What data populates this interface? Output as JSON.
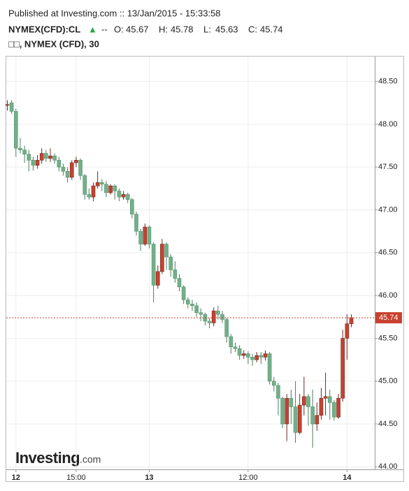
{
  "header": {
    "published": "Published at Investing.com :: 13/Jan/2015 - 15:33:58",
    "symbol": "NYMEX(CFD):CL",
    "arrow": "▲",
    "change": "--",
    "ohlc": [
      {
        "label": "O:",
        "value": 45.67
      },
      {
        "label": "H:",
        "value": 45.78
      },
      {
        "label": "L:",
        "value": 45.63
      },
      {
        "label": "C:",
        "value": 45.74
      }
    ],
    "legend": "□□, NYMEX (CFD), 30"
  },
  "logo": {
    "brand": "Investing",
    "domain": ".com"
  },
  "chart_data": {
    "type": "candlestick",
    "categories": [
      null,
      null,
      "12",
      null,
      null,
      null,
      null,
      null,
      null,
      null,
      null,
      null,
      null,
      null,
      null,
      null,
      "15:00",
      null,
      null,
      null,
      null,
      null,
      null,
      null,
      null,
      null,
      null,
      null,
      null,
      null,
      null,
      null,
      null,
      "13",
      null,
      null,
      null,
      null,
      null,
      null,
      null,
      null,
      null,
      null,
      null,
      null,
      null,
      null,
      null,
      null,
      null,
      null,
      null,
      null,
      null,
      null,
      "12:00",
      null,
      null,
      null,
      null,
      null,
      null,
      null,
      null,
      null,
      null,
      null,
      null,
      null,
      null,
      null,
      null,
      null,
      null,
      null,
      null,
      null,
      null,
      "14",
      null
    ],
    "open": [
      48.22,
      48.25,
      48.15,
      47.72,
      47.7,
      47.65,
      47.58,
      47.52,
      47.58,
      47.66,
      47.6,
      47.63,
      47.58,
      47.5,
      47.45,
      47.38,
      47.55,
      47.58,
      47.4,
      47.18,
      47.15,
      47.28,
      47.32,
      47.3,
      47.2,
      47.28,
      47.22,
      47.15,
      47.18,
      47.12,
      46.95,
      46.75,
      46.6,
      46.8,
      46.6,
      46.12,
      46.28,
      46.6,
      46.45,
      46.3,
      46.2,
      46.1,
      45.95,
      45.9,
      45.88,
      45.8,
      45.78,
      45.7,
      45.68,
      45.82,
      45.78,
      45.72,
      45.52,
      45.4,
      45.38,
      45.3,
      45.32,
      45.28,
      45.25,
      45.3,
      45.28,
      45.32,
      45.0,
      44.95,
      44.8,
      44.5,
      44.8,
      44.7,
      44.4,
      44.72,
      44.82,
      44.7,
      44.5,
      44.6,
      44.8,
      44.82,
      44.75,
      44.58,
      44.8,
      45.5,
      45.67
    ],
    "high": [
      48.28,
      48.28,
      48.18,
      47.84,
      47.75,
      47.7,
      47.62,
      47.64,
      47.72,
      47.7,
      47.72,
      47.66,
      47.62,
      47.54,
      47.5,
      47.58,
      47.62,
      47.6,
      47.42,
      47.25,
      47.32,
      47.45,
      47.36,
      47.34,
      47.3,
      47.3,
      47.25,
      47.22,
      47.2,
      47.14,
      46.98,
      46.78,
      46.84,
      46.82,
      46.62,
      46.35,
      46.66,
      46.62,
      46.48,
      46.4,
      46.25,
      46.12,
      45.98,
      45.95,
      45.92,
      45.85,
      45.8,
      45.74,
      45.86,
      45.88,
      45.82,
      45.74,
      45.55,
      45.45,
      45.42,
      45.36,
      45.35,
      45.32,
      45.34,
      45.34,
      45.36,
      45.34,
      45.05,
      44.98,
      44.82,
      44.85,
      44.9,
      45.0,
      44.85,
      45.05,
      44.85,
      44.9,
      44.75,
      44.92,
      45.1,
      44.9,
      44.78,
      44.85,
      45.6,
      45.78,
      45.78
    ],
    "low": [
      48.16,
      48.12,
      47.62,
      47.66,
      47.55,
      47.45,
      47.46,
      47.48,
      47.54,
      47.56,
      47.56,
      47.54,
      47.45,
      47.4,
      47.32,
      47.35,
      47.5,
      47.35,
      47.12,
      47.12,
      47.1,
      47.25,
      47.22,
      47.15,
      47.18,
      47.12,
      47.1,
      47.12,
      47.08,
      46.9,
      46.7,
      46.52,
      46.58,
      46.55,
      45.92,
      46.08,
      46.25,
      46.3,
      46.22,
      46.15,
      46.05,
      45.9,
      45.85,
      45.82,
      45.75,
      45.7,
      45.65,
      45.62,
      45.64,
      45.72,
      45.68,
      45.45,
      45.32,
      45.34,
      45.25,
      45.26,
      45.2,
      45.18,
      45.22,
      45.2,
      45.24,
      44.96,
      44.88,
      44.6,
      44.45,
      44.3,
      44.5,
      44.28,
      44.38,
      44.6,
      44.48,
      44.22,
      44.42,
      44.55,
      44.6,
      44.55,
      44.54,
      44.56,
      44.76,
      45.25,
      45.63
    ],
    "close": [
      48.23,
      48.15,
      47.72,
      47.7,
      47.65,
      47.58,
      47.52,
      47.58,
      47.66,
      47.6,
      47.63,
      47.58,
      47.5,
      47.45,
      47.38,
      47.55,
      47.58,
      47.4,
      47.18,
      47.15,
      47.28,
      47.32,
      47.3,
      47.2,
      47.28,
      47.22,
      47.15,
      47.18,
      47.12,
      46.95,
      46.75,
      46.6,
      46.8,
      46.6,
      46.12,
      46.28,
      46.6,
      46.45,
      46.3,
      46.2,
      46.1,
      45.95,
      45.9,
      45.88,
      45.8,
      45.78,
      45.7,
      45.68,
      45.82,
      45.78,
      45.72,
      45.52,
      45.4,
      45.38,
      45.3,
      45.32,
      45.28,
      45.25,
      45.3,
      45.28,
      45.32,
      45.0,
      44.95,
      44.8,
      44.5,
      44.8,
      44.7,
      44.4,
      44.72,
      44.82,
      44.7,
      44.5,
      44.6,
      44.8,
      44.82,
      44.75,
      44.58,
      44.8,
      45.5,
      45.67,
      45.74
    ],
    "up_color": "#c9412e",
    "down_color": "#72b08a",
    "last_price": 45.74,
    "last_price_color": "#c9412e",
    "ylim": [
      43.97,
      48.79
    ],
    "yticks": [
      {
        "value": 44.0,
        "label": "44.00"
      },
      {
        "value": 44.5,
        "label": "44.50"
      },
      {
        "value": 45.0,
        "label": "45.00"
      },
      {
        "value": 45.5,
        "label": "45.50"
      },
      {
        "value": 46.0,
        "label": "46.00"
      },
      {
        "value": 46.5,
        "label": "46.50"
      },
      {
        "value": 47.0,
        "label": "47.00"
      },
      {
        "value": 47.5,
        "label": "47.50"
      },
      {
        "value": 48.0,
        "label": "48.00"
      },
      {
        "value": 48.5,
        "label": "48.50"
      }
    ],
    "grid": true
  }
}
